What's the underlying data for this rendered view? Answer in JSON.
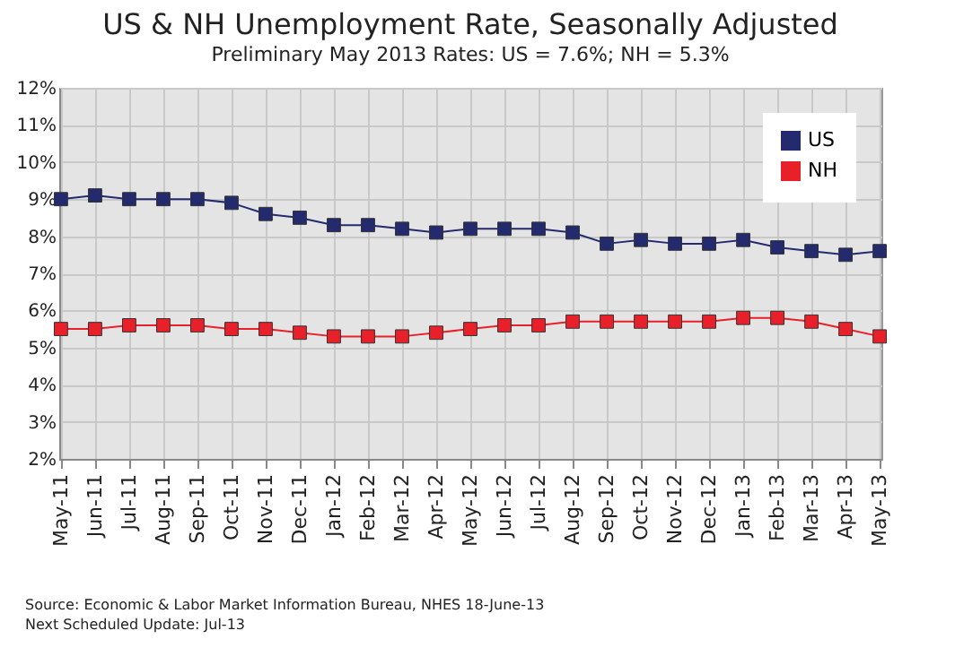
{
  "chart_data": {
    "type": "line",
    "title": "US & NH Unemployment Rate, Seasonally Adjusted",
    "subtitle": "Preliminary May 2013 Rates: US = 7.6%; NH = 5.3%",
    "categories": [
      "May-11",
      "Jun-11",
      "Jul-11",
      "Aug-11",
      "Sep-11",
      "Oct-11",
      "Nov-11",
      "Dec-11",
      "Jan-12",
      "Feb-12",
      "Mar-12",
      "Apr-12",
      "May-12",
      "Jun-12",
      "Jul-12",
      "Aug-12",
      "Sep-12",
      "Oct-12",
      "Nov-12",
      "Dec-12",
      "Jan-13",
      "Feb-13",
      "Mar-13",
      "Apr-13",
      "May-13"
    ],
    "series": [
      {
        "name": "US",
        "color": "#232a6e",
        "values": [
          9.0,
          9.1,
          9.0,
          9.0,
          9.0,
          8.9,
          8.6,
          8.5,
          8.3,
          8.3,
          8.2,
          8.1,
          8.2,
          8.2,
          8.2,
          8.1,
          7.8,
          7.9,
          7.8,
          7.8,
          7.9,
          7.7,
          7.6,
          7.5,
          7.6
        ]
      },
      {
        "name": "NH",
        "color": "#e8202a",
        "values": [
          5.5,
          5.5,
          5.6,
          5.6,
          5.6,
          5.5,
          5.5,
          5.4,
          5.3,
          5.3,
          5.3,
          5.4,
          5.5,
          5.6,
          5.6,
          5.7,
          5.7,
          5.7,
          5.7,
          5.7,
          5.8,
          5.8,
          5.7,
          5.5,
          5.3
        ]
      }
    ],
    "ylim": [
      2,
      12
    ],
    "yticks": [
      {
        "value": 2,
        "label": "2%"
      },
      {
        "value": 3,
        "label": "3%"
      },
      {
        "value": 4,
        "label": "4%"
      },
      {
        "value": 5,
        "label": "5%"
      },
      {
        "value": 6,
        "label": "6%"
      },
      {
        "value": 7,
        "label": "7%"
      },
      {
        "value": 8,
        "label": "8%"
      },
      {
        "value": 9,
        "label": "9%"
      },
      {
        "value": 10,
        "label": "10%"
      },
      {
        "value": 11,
        "label": "11%"
      },
      {
        "value": 12,
        "label": "12%"
      }
    ],
    "grid": true,
    "legend": "top right",
    "marker": "square",
    "line_style": "solid",
    "annotations": [
      "Source: Economic & Labor Market Information Bureau, NHES  18-June-13",
      "Next Scheduled Update:  Jul-13"
    ]
  }
}
